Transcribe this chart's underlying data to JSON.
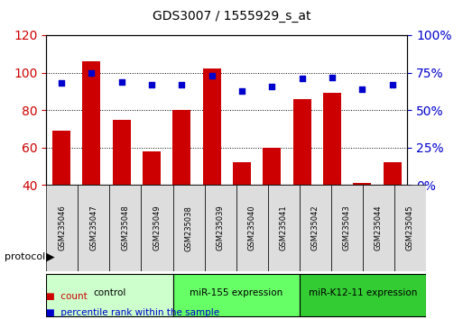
{
  "title": "GDS3007 / 1555929_s_at",
  "categories": [
    "GSM235046",
    "GSM235047",
    "GSM235048",
    "GSM235049",
    "GSM235038",
    "GSM235039",
    "GSM235040",
    "GSM235041",
    "GSM235042",
    "GSM235043",
    "GSM235044",
    "GSM235045"
  ],
  "bar_values": [
    69,
    106,
    75,
    58,
    80,
    102,
    52,
    60,
    86,
    89,
    41,
    52
  ],
  "dot_values": [
    68,
    75,
    69,
    67,
    67,
    73,
    63,
    66,
    71,
    72,
    64,
    67
  ],
  "ylim_left": [
    40,
    120
  ],
  "ylim_right": [
    0,
    100
  ],
  "yticks_left": [
    40,
    60,
    80,
    100,
    120
  ],
  "yticks_right": [
    0,
    25,
    50,
    75,
    100
  ],
  "yticklabels_right": [
    "0%",
    "25%",
    "50%",
    "75%",
    "100%"
  ],
  "bar_color": "#cc0000",
  "dot_color": "#0000cc",
  "groups": [
    {
      "label": "control",
      "start": 0,
      "end": 4,
      "color": "#ccffcc"
    },
    {
      "label": "miR-155 expression",
      "start": 4,
      "end": 8,
      "color": "#66ff66"
    },
    {
      "label": "miR-K12-11 expression",
      "start": 8,
      "end": 12,
      "color": "#33cc33"
    }
  ],
  "protocol_label": "protocol",
  "legend_bar_label": "count",
  "legend_dot_label": "percentile rank within the sample",
  "bg_color": "#ffffff",
  "grid_color": "#000000",
  "tick_label_color_left": "#cc0000",
  "tick_label_color_right": "#0000cc"
}
